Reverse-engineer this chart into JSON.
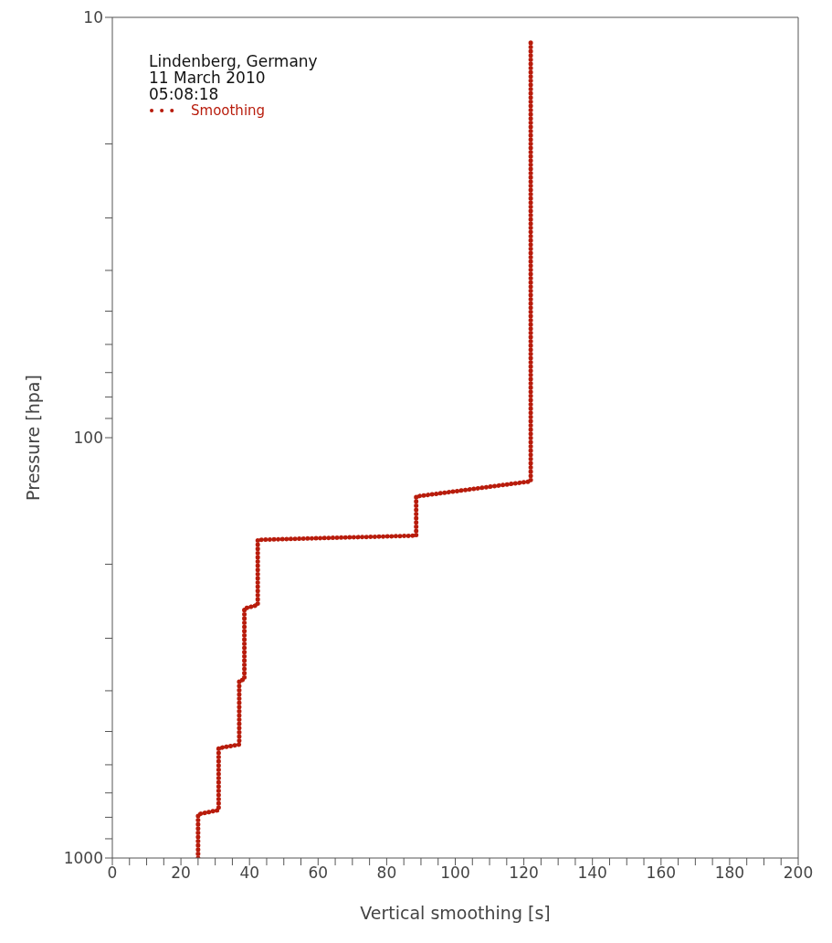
{
  "chart_data": {
    "type": "line",
    "xlabel": "Vertical smoothing [s]",
    "ylabel": "Pressure [hpa]",
    "annotations": [
      "Lindenberg, Germany",
      "11 March 2010",
      "05:08:18"
    ],
    "x": [
      25,
      25,
      31,
      31,
      37,
      37,
      38.5,
      38.5,
      42.4,
      42.4,
      88.6,
      88.6,
      122,
      122
    ],
    "series": [
      {
        "name": "Smoothing",
        "color": "#b81c0c",
        "values": [
          1000,
          787,
          769,
          548,
          537,
          379,
          376,
          255,
          250,
          175,
          171,
          138,
          127,
          11.3
        ]
      }
    ],
    "xlim": [
      0,
      200
    ],
    "xticks": [
      0,
      {
        "value": 5,
        "label": null
      },
      {
        "value": 10,
        "label": null
      },
      {
        "value": 15,
        "label": null
      },
      20,
      {
        "value": 25,
        "label": null
      },
      {
        "value": 30,
        "label": null
      },
      {
        "value": 35,
        "label": null
      },
      40,
      {
        "value": 45,
        "label": null
      },
      {
        "value": 50,
        "label": null
      },
      {
        "value": 55,
        "label": null
      },
      60,
      {
        "value": 65,
        "label": null
      },
      {
        "value": 70,
        "label": null
      },
      {
        "value": 75,
        "label": null
      },
      80,
      {
        "value": 85,
        "label": null
      },
      {
        "value": 90,
        "label": null
      },
      {
        "value": 95,
        "label": null
      },
      100,
      {
        "value": 105,
        "label": null
      },
      {
        "value": 110,
        "label": null
      },
      {
        "value": 115,
        "label": null
      },
      120,
      {
        "value": 125,
        "label": null
      },
      {
        "value": 130,
        "label": null
      },
      {
        "value": 135,
        "label": null
      },
      140,
      {
        "value": 145,
        "label": null
      },
      {
        "value": 150,
        "label": null
      },
      {
        "value": 155,
        "label": null
      },
      160,
      {
        "value": 165,
        "label": null
      },
      {
        "value": 170,
        "label": null
      },
      {
        "value": 175,
        "label": null
      },
      180,
      {
        "value": 185,
        "label": null
      },
      {
        "value": 190,
        "label": null
      },
      {
        "value": 195,
        "label": null
      },
      200
    ],
    "ylim": [
      1000,
      10
    ],
    "yticks": [
      10,
      {
        "value": 20,
        "label": null
      },
      {
        "value": 30,
        "label": null
      },
      {
        "value": 40,
        "label": null
      },
      {
        "value": 50,
        "label": null
      },
      {
        "value": 60,
        "label": null
      },
      {
        "value": 70,
        "label": null
      },
      {
        "value": 80,
        "label": null
      },
      {
        "value": 90,
        "label": null
      },
      100,
      {
        "value": 200,
        "label": null
      },
      {
        "value": 300,
        "label": null
      },
      {
        "value": 400,
        "label": null
      },
      {
        "value": 500,
        "label": null
      },
      {
        "value": 600,
        "label": null
      },
      {
        "value": 700,
        "label": null
      },
      {
        "value": 800,
        "label": null
      },
      {
        "value": 900,
        "label": null
      },
      1000
    ],
    "log": "y",
    "grid": false,
    "legend": "top left",
    "line_style": "dotted"
  }
}
